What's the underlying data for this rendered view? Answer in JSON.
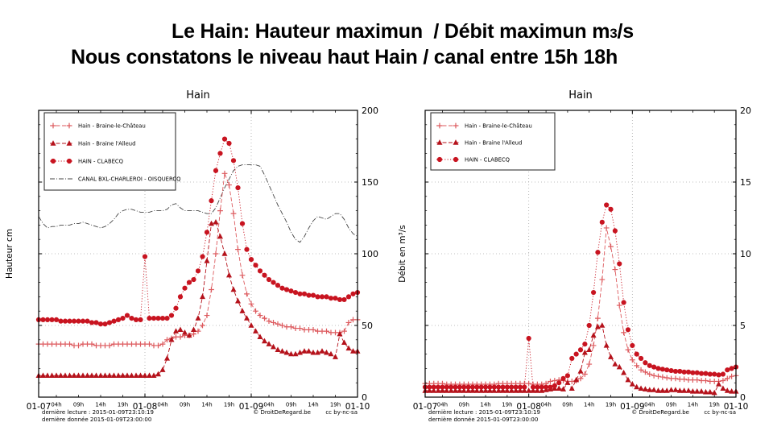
{
  "header": {
    "line1_prefix": "Le Hain: Hauteur maximun  / Débit maximun m",
    "line1_sub": "3",
    "line1_suffix": "/s",
    "line2": "Nous constatons le niveau haut Hain / canal entre 15h 18h"
  },
  "footer": {
    "last_read": "dernière lecture : 2015-01-09T23:10:19",
    "last_data": "dernière donnée  2015-01-09T23:00:00",
    "copyright": "© DroitDeRegard.be",
    "license": "cc by-nc-sa"
  },
  "colors": {
    "series_chateau": "#dd5a5e",
    "series_alleud": "#b5121b",
    "series_clabecq": "#c81420",
    "series_canal": "#444444",
    "grid": "#aaaaaa",
    "axis": "#000000"
  },
  "chart_data": [
    {
      "type": "line",
      "title": "Hain",
      "ylabel": "Hauteur cm",
      "ylim": [
        0,
        200
      ],
      "yticks": [
        0,
        50,
        100,
        150,
        200
      ],
      "x_unit": "hours from 2015-01-07 00:00",
      "x_range_hours": [
        0,
        72
      ],
      "xticks_major": [
        {
          "hour": 0,
          "label": "01-07"
        },
        {
          "hour": 24,
          "label": "01-08"
        },
        {
          "hour": 48,
          "label": "01-09"
        },
        {
          "hour": 72,
          "label": "01-10"
        }
      ],
      "xticks_minor": [
        {
          "hour": 4,
          "label": "04h"
        },
        {
          "hour": 9,
          "label": "09h"
        },
        {
          "hour": 14,
          "label": "14h"
        },
        {
          "hour": 19,
          "label": "19h"
        },
        {
          "hour": 28,
          "label": "04h"
        },
        {
          "hour": 33,
          "label": "09h"
        },
        {
          "hour": 38,
          "label": "14h"
        },
        {
          "hour": 43,
          "label": "19h"
        },
        {
          "hour": 52,
          "label": "04h"
        },
        {
          "hour": 57,
          "label": "09h"
        },
        {
          "hour": 62,
          "label": "14h"
        },
        {
          "hour": 67,
          "label": "19h"
        }
      ],
      "grid": {
        "h_at": [
          50,
          100,
          150
        ],
        "v_at_hours": [
          24,
          48
        ]
      },
      "legend_position": "upper-left",
      "series": [
        {
          "name": "Hain - Braine-le-Château",
          "marker": "plus",
          "linestyle": "dashed",
          "color": "#dd5a5e",
          "values": [
            37,
            37,
            37,
            37,
            37,
            37,
            37,
            37,
            36,
            36,
            37,
            37,
            37,
            36,
            36,
            36,
            36,
            37,
            37,
            37,
            37,
            37,
            37,
            37,
            37,
            37,
            36,
            36,
            37,
            40,
            41,
            42,
            42,
            43,
            43,
            44,
            46,
            50,
            57,
            75,
            100,
            130,
            156,
            148,
            128,
            103,
            85,
            72,
            65,
            60,
            57,
            55,
            53,
            52,
            51,
            50,
            49,
            49,
            48,
            48,
            47,
            47,
            47,
            46,
            46,
            46,
            45,
            45,
            45,
            46,
            52,
            54,
            54
          ]
        },
        {
          "name": "Hain - Braine l'Alleud",
          "marker": "triangle",
          "linestyle": "dashed",
          "color": "#b5121b",
          "values": [
            15,
            15,
            15,
            15,
            15,
            15,
            15,
            15,
            15,
            15,
            15,
            15,
            15,
            15,
            15,
            15,
            15,
            15,
            15,
            15,
            15,
            15,
            15,
            15,
            15,
            15,
            15,
            16,
            19,
            27,
            40,
            46,
            47,
            45,
            43,
            47,
            55,
            70,
            95,
            121,
            122,
            112,
            100,
            85,
            75,
            67,
            60,
            55,
            50,
            46,
            42,
            39,
            37,
            35,
            33,
            32,
            31,
            30,
            30,
            31,
            32,
            32,
            31,
            31,
            32,
            31,
            30,
            28,
            44,
            38,
            34,
            32,
            32
          ]
        },
        {
          "name": "HAIN - CLABECQ",
          "marker": "circle",
          "linestyle": "dotted",
          "color": "#c81420",
          "values": [
            54,
            54,
            54,
            54,
            54,
            53,
            53,
            53,
            53,
            53,
            53,
            53,
            52,
            52,
            51,
            51,
            52,
            53,
            54,
            55,
            57,
            55,
            54,
            54,
            98,
            55,
            55,
            55,
            55,
            55,
            57,
            62,
            70,
            76,
            80,
            82,
            88,
            98,
            115,
            137,
            158,
            170,
            180,
            177,
            165,
            146,
            121,
            103,
            96,
            92,
            88,
            85,
            82,
            80,
            78,
            76,
            75,
            74,
            73,
            72,
            72,
            71,
            71,
            70,
            70,
            70,
            69,
            69,
            68,
            68,
            70,
            72,
            73
          ]
        },
        {
          "name": "CANAL BXL-CHARLEROI - OISQUERCQ",
          "marker": "none",
          "linestyle": "dashdot",
          "color": "#444444",
          "values": [
            126,
            121,
            118,
            119,
            119,
            120,
            120,
            120,
            121,
            121,
            122,
            121,
            120,
            119,
            118,
            119,
            121,
            124,
            128,
            130,
            131,
            131,
            130,
            129,
            129,
            129,
            130,
            130,
            130,
            131,
            134,
            135,
            132,
            130,
            130,
            130,
            130,
            129,
            128,
            128,
            132,
            139,
            146,
            152,
            158,
            161,
            162,
            162,
            162,
            162,
            161,
            155,
            148,
            141,
            134,
            128,
            122,
            115,
            110,
            108,
            112,
            118,
            123,
            126,
            125,
            124,
            126,
            128,
            128,
            124,
            118,
            114,
            112
          ]
        }
      ]
    },
    {
      "type": "line",
      "title": "Hain",
      "ylabel": "Débit en m³/s",
      "ylim": [
        0,
        20
      ],
      "yticks": [
        0,
        5,
        10,
        15,
        20
      ],
      "x_unit": "hours from 2015-01-07 00:00",
      "x_range_hours": [
        0,
        72
      ],
      "xticks_major": [
        {
          "hour": 0,
          "label": "01-07"
        },
        {
          "hour": 24,
          "label": "01-08"
        },
        {
          "hour": 48,
          "label": "01-09"
        },
        {
          "hour": 72,
          "label": "01-10"
        }
      ],
      "xticks_minor": [
        {
          "hour": 4,
          "label": "04h"
        },
        {
          "hour": 9,
          "label": "09h"
        },
        {
          "hour": 14,
          "label": "14h"
        },
        {
          "hour": 19,
          "label": "19h"
        },
        {
          "hour": 28,
          "label": "04h"
        },
        {
          "hour": 33,
          "label": "09h"
        },
        {
          "hour": 38,
          "label": "14h"
        },
        {
          "hour": 43,
          "label": "19h"
        },
        {
          "hour": 52,
          "label": "04h"
        },
        {
          "hour": 57,
          "label": "09h"
        },
        {
          "hour": 62,
          "label": "14h"
        },
        {
          "hour": 67,
          "label": "19h"
        }
      ],
      "grid": {
        "h_at": [
          5,
          10,
          15
        ],
        "v_at_hours": [
          24,
          48
        ]
      },
      "legend_position": "upper-left",
      "series": [
        {
          "name": "Hain - Braine-le-Château",
          "marker": "plus",
          "linestyle": "dashed",
          "color": "#dd5a5e",
          "values": [
            0.95,
            0.95,
            0.95,
            0.95,
            0.95,
            0.9,
            0.9,
            0.9,
            0.9,
            0.9,
            0.9,
            0.9,
            0.9,
            0.9,
            0.9,
            0.9,
            0.9,
            0.95,
            0.95,
            0.95,
            0.95,
            0.95,
            0.95,
            0.95,
            0.95,
            0.9,
            0.9,
            0.9,
            0.95,
            1.1,
            1.15,
            1.2,
            1.15,
            1.1,
            1.1,
            1.15,
            1.3,
            1.6,
            2.3,
            3.6,
            5.5,
            8.2,
            11.8,
            10.5,
            8.9,
            6.4,
            4.5,
            3.3,
            2.6,
            2.2,
            1.9,
            1.75,
            1.6,
            1.5,
            1.45,
            1.4,
            1.35,
            1.3,
            1.3,
            1.25,
            1.25,
            1.2,
            1.2,
            1.2,
            1.15,
            1.15,
            1.1,
            1.1,
            1.1,
            1.15,
            1.3,
            1.45,
            1.5
          ]
        },
        {
          "name": "Hain - Braine l'Alleud",
          "marker": "triangle",
          "linestyle": "dashed",
          "color": "#b5121b",
          "values": [
            0.45,
            0.45,
            0.45,
            0.45,
            0.45,
            0.45,
            0.45,
            0.45,
            0.45,
            0.45,
            0.45,
            0.45,
            0.45,
            0.45,
            0.45,
            0.45,
            0.45,
            0.45,
            0.45,
            0.45,
            0.45,
            0.45,
            0.45,
            0.45,
            0.45,
            0.45,
            0.45,
            0.45,
            0.5,
            0.55,
            0.6,
            0.6,
            0.55,
            1.0,
            0.6,
            1.2,
            1.8,
            3.1,
            3.3,
            4.3,
            4.9,
            5.0,
            3.6,
            2.8,
            2.3,
            2.1,
            1.7,
            1.2,
            0.9,
            0.7,
            0.6,
            0.55,
            0.5,
            0.5,
            0.45,
            0.45,
            0.45,
            0.5,
            0.5,
            0.45,
            0.45,
            0.45,
            0.4,
            0.4,
            0.4,
            0.35,
            0.35,
            0.3,
            0.9,
            0.6,
            0.45,
            0.4,
            0.4
          ]
        },
        {
          "name": "HAIN - CLABECQ",
          "marker": "circle",
          "linestyle": "dotted",
          "color": "#c81420",
          "values": [
            0.7,
            0.7,
            0.7,
            0.7,
            0.7,
            0.7,
            0.7,
            0.7,
            0.7,
            0.7,
            0.7,
            0.7,
            0.7,
            0.7,
            0.7,
            0.7,
            0.7,
            0.7,
            0.7,
            0.7,
            0.7,
            0.7,
            0.7,
            0.7,
            4.1,
            0.7,
            0.7,
            0.7,
            0.7,
            0.7,
            0.8,
            1.0,
            1.3,
            1.5,
            2.7,
            3.0,
            3.3,
            3.7,
            5.0,
            7.3,
            10.1,
            12.2,
            13.4,
            13.1,
            11.6,
            9.3,
            6.6,
            4.7,
            3.6,
            3.0,
            2.7,
            2.4,
            2.2,
            2.1,
            2.0,
            1.95,
            1.9,
            1.85,
            1.8,
            1.8,
            1.75,
            1.75,
            1.7,
            1.7,
            1.65,
            1.65,
            1.6,
            1.6,
            1.55,
            1.6,
            1.9,
            2.0,
            2.1
          ]
        }
      ]
    }
  ]
}
